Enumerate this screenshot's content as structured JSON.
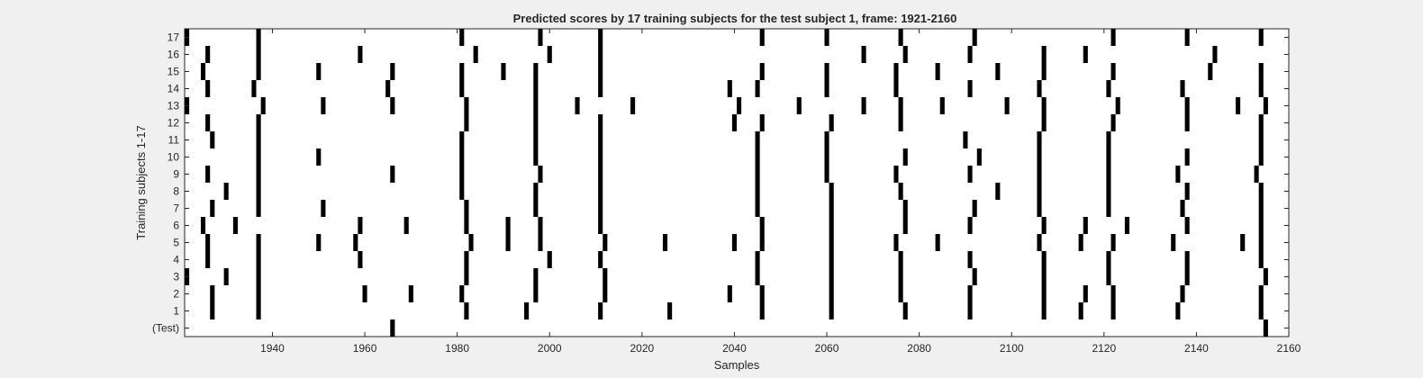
{
  "chart_data": {
    "type": "raster",
    "title": "Predicted scores by 17 training subjects for the test subject 1, frame: 1921-2160",
    "xlabel": "Samples",
    "ylabel": "Training subjects 1-17",
    "xlim": [
      1921,
      2160
    ],
    "xticks": [
      1940,
      1960,
      1980,
      2000,
      2020,
      2040,
      2060,
      2080,
      2100,
      2120,
      2140,
      2160
    ],
    "yticklabels": [
      "(Test)",
      "1",
      "2",
      "3",
      "4",
      "5",
      "6",
      "7",
      "8",
      "9",
      "10",
      "11",
      "12",
      "13",
      "14",
      "15",
      "16",
      "17"
    ],
    "grid": false,
    "mark_color": "#000000",
    "rows": [
      {
        "label": "17",
        "events": [
          1921,
          1937,
          1981,
          1998,
          2011,
          2046,
          2060,
          2076,
          2092,
          2122,
          2138,
          2154
        ]
      },
      {
        "label": "16",
        "events": [
          1926,
          1937,
          1959,
          1984,
          2000,
          2011,
          2068,
          2077,
          2091,
          2107,
          2116,
          2144
        ]
      },
      {
        "label": "15",
        "events": [
          1925,
          1937,
          1950,
          1966,
          1981,
          1990,
          1997,
          2011,
          2046,
          2060,
          2075,
          2084,
          2097,
          2107,
          2122,
          2143,
          2154
        ]
      },
      {
        "label": "14",
        "events": [
          1926,
          1936,
          1965,
          1981,
          1997,
          2011,
          2039,
          2045,
          2060,
          2075,
          2091,
          2106,
          2121,
          2137,
          2154
        ]
      },
      {
        "label": "13",
        "events": [
          1921,
          1938,
          1951,
          1966,
          1982,
          1997,
          2006,
          2018,
          2041,
          2054,
          2068,
          2076,
          2085,
          2099,
          2107,
          2123,
          2138,
          2149,
          2155
        ]
      },
      {
        "label": "12",
        "events": [
          1926,
          1937,
          1982,
          1997,
          2011,
          2040,
          2046,
          2061,
          2076,
          2107,
          2122,
          2138,
          2154
        ]
      },
      {
        "label": "11",
        "events": [
          1927,
          1937,
          1981,
          1997,
          2011,
          2045,
          2060,
          2090,
          2106,
          2121,
          2154
        ]
      },
      {
        "label": "10",
        "events": [
          1937,
          1950,
          1981,
          1997,
          2011,
          2045,
          2060,
          2077,
          2093,
          2106,
          2121,
          2138,
          2154
        ]
      },
      {
        "label": "9",
        "events": [
          1926,
          1937,
          1966,
          1981,
          1998,
          2011,
          2045,
          2060,
          2075,
          2091,
          2106,
          2121,
          2136,
          2153
        ]
      },
      {
        "label": "8",
        "events": [
          1930,
          1937,
          1981,
          1997,
          2011,
          2045,
          2061,
          2076,
          2097,
          2106,
          2121,
          2138,
          2154
        ]
      },
      {
        "label": "7",
        "events": [
          1927,
          1937,
          1951,
          1982,
          1997,
          2011,
          2045,
          2061,
          2077,
          2092,
          2106,
          2121,
          2137,
          2154
        ]
      },
      {
        "label": "6",
        "events": [
          1925,
          1932,
          1959,
          1969,
          1982,
          1991,
          1998,
          2011,
          2046,
          2061,
          2077,
          2091,
          2107,
          2116,
          2125,
          2138,
          2154
        ]
      },
      {
        "label": "5",
        "events": [
          1926,
          1937,
          1950,
          1958,
          1983,
          1991,
          1998,
          2012,
          2025,
          2040,
          2046,
          2061,
          2075,
          2084,
          2106,
          2115,
          2122,
          2135,
          2150,
          2154
        ]
      },
      {
        "label": "4",
        "events": [
          1926,
          1937,
          1959,
          1982,
          2000,
          2011,
          2045,
          2061,
          2076,
          2091,
          2107,
          2121,
          2138,
          2154
        ]
      },
      {
        "label": "3",
        "events": [
          1921,
          1930,
          1937,
          1982,
          1997,
          2012,
          2045,
          2061,
          2076,
          2092,
          2107,
          2121,
          2138,
          2155
        ]
      },
      {
        "label": "2",
        "events": [
          1927,
          1937,
          1960,
          1970,
          1981,
          1997,
          2012,
          2039,
          2046,
          2061,
          2076,
          2091,
          2107,
          2116,
          2122,
          2137,
          2154
        ]
      },
      {
        "label": "1",
        "events": [
          1927,
          1937,
          1982,
          1995,
          2011,
          2026,
          2046,
          2061,
          2077,
          2091,
          2107,
          2115,
          2122,
          2136,
          2154
        ]
      },
      {
        "label": "(Test)",
        "events": [
          1966,
          2155
        ]
      }
    ]
  }
}
